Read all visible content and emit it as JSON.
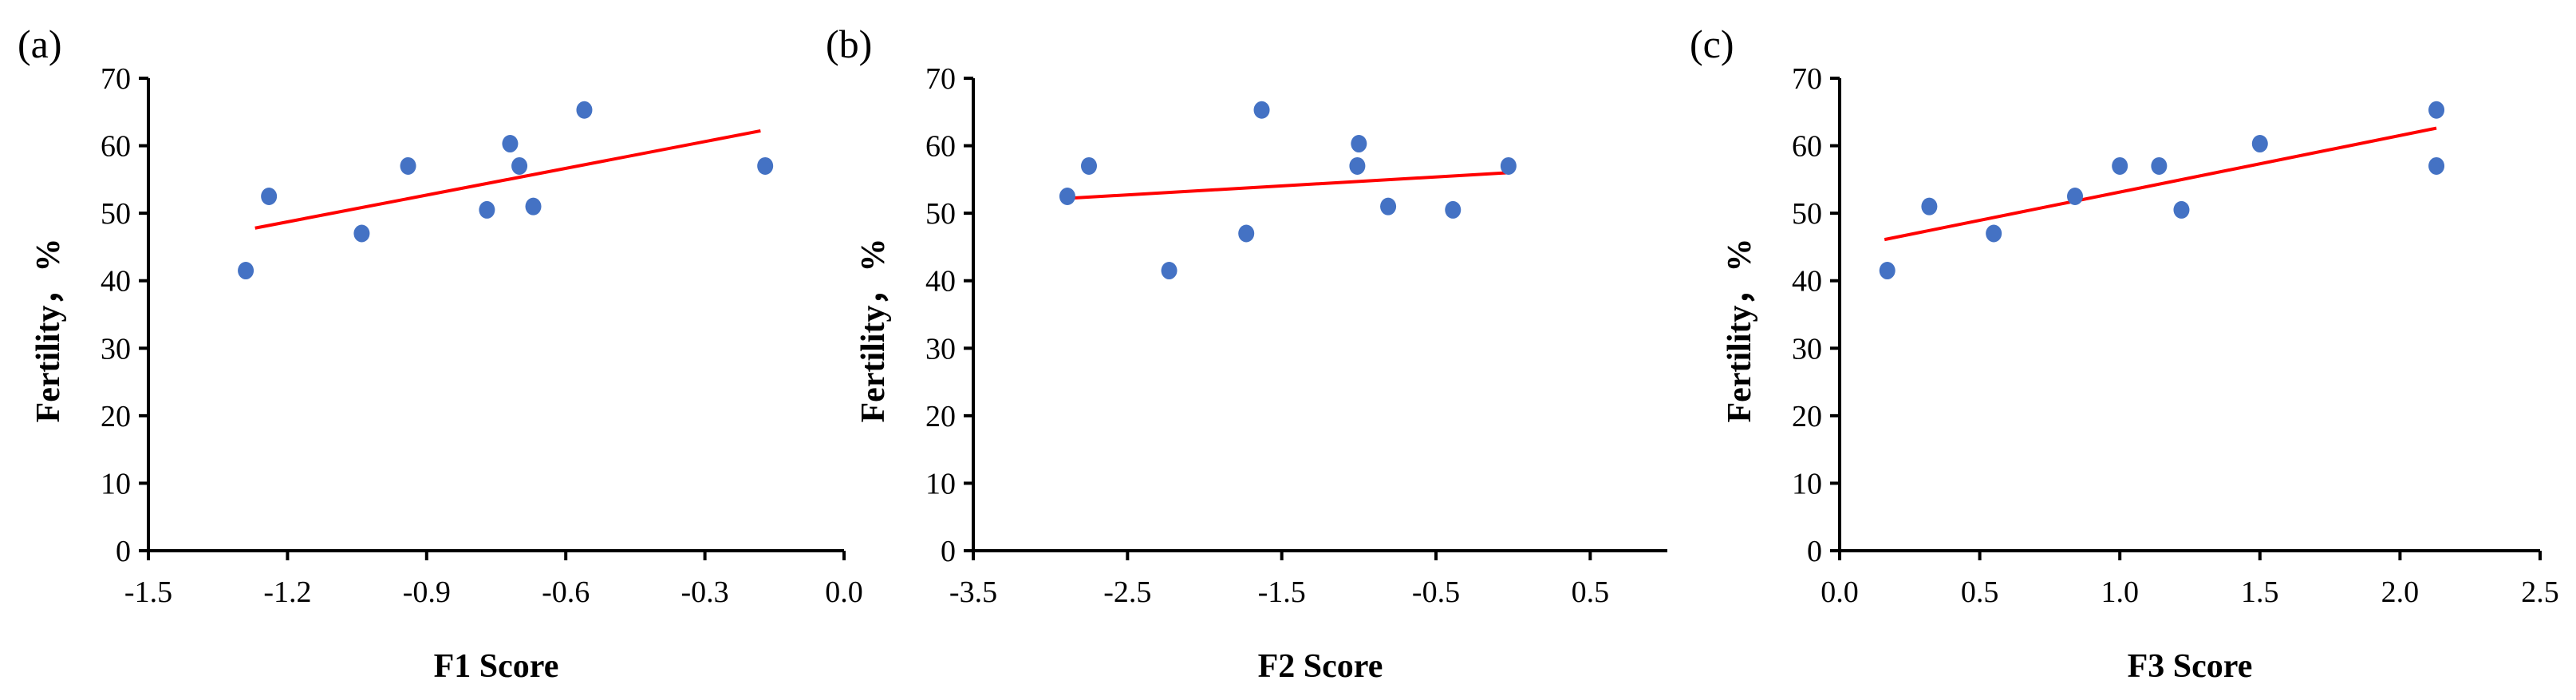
{
  "chart_data": [
    {
      "panel": "(a)",
      "type": "scatter",
      "xlabel": "F1 Score",
      "ylabel": "Fertility，%",
      "xlim": [
        -1.5,
        0.0
      ],
      "ylim": [
        0,
        70
      ],
      "xticks": [
        "-1.5",
        "-1.2",
        "-0.9",
        "-0.6",
        "-0.3",
        "0.0"
      ],
      "yticks": [
        "0",
        "10",
        "20",
        "30",
        "40",
        "50",
        "60",
        "70"
      ],
      "points": [
        {
          "x": -1.29,
          "y": 41.5
        },
        {
          "x": -1.24,
          "y": 52.5
        },
        {
          "x": -1.04,
          "y": 47.0
        },
        {
          "x": -0.94,
          "y": 57.0
        },
        {
          "x": -0.77,
          "y": 50.5
        },
        {
          "x": -0.72,
          "y": 60.3
        },
        {
          "x": -0.7,
          "y": 57.0
        },
        {
          "x": -0.67,
          "y": 51.0
        },
        {
          "x": -0.56,
          "y": 65.3
        },
        {
          "x": -0.17,
          "y": 57.0
        }
      ],
      "trendline": {
        "x": [
          -1.27,
          -0.18
        ],
        "y": [
          47.8,
          62.2
        ]
      },
      "point_color": "#4472C4",
      "line_color": "#FF0000"
    },
    {
      "panel": "(b)",
      "type": "scatter",
      "xlabel": "F2 Score",
      "ylabel": "Fertility，%",
      "xlim": [
        -3.5,
        1.0
      ],
      "ylim": [
        0,
        70
      ],
      "xticks": [
        "-3.5",
        "-2.5",
        "-1.5",
        "-0.5",
        "0.5"
      ],
      "yticks": [
        "0",
        "10",
        "20",
        "30",
        "40",
        "50",
        "60",
        "70"
      ],
      "points": [
        {
          "x": -2.89,
          "y": 52.5
        },
        {
          "x": -2.75,
          "y": 57.0
        },
        {
          "x": -2.23,
          "y": 41.5
        },
        {
          "x": -1.73,
          "y": 47.0
        },
        {
          "x": -1.63,
          "y": 65.3
        },
        {
          "x": -1.01,
          "y": 57.0
        },
        {
          "x": -1.0,
          "y": 60.3
        },
        {
          "x": -0.81,
          "y": 51.0
        },
        {
          "x": -0.39,
          "y": 50.5
        },
        {
          "x": -0.03,
          "y": 57.0
        }
      ],
      "trendline": {
        "x": [
          -2.89,
          -0.03
        ],
        "y": [
          52.2,
          56.0
        ]
      },
      "point_color": "#4472C4",
      "line_color": "#FF0000"
    },
    {
      "panel": "(c)",
      "type": "scatter",
      "xlabel": "F3 Score",
      "ylabel": "Fertility，%",
      "xlim": [
        0.0,
        2.5
      ],
      "ylim": [
        0,
        70
      ],
      "xticks": [
        "0.0",
        "0.5",
        "1.0",
        "1.5",
        "2.0",
        "2.5"
      ],
      "yticks": [
        "0",
        "10",
        "20",
        "30",
        "40",
        "50",
        "60",
        "70"
      ],
      "points": [
        {
          "x": 0.17,
          "y": 41.5
        },
        {
          "x": 0.32,
          "y": 51.0
        },
        {
          "x": 0.55,
          "y": 47.0
        },
        {
          "x": 0.84,
          "y": 52.5
        },
        {
          "x": 1.0,
          "y": 57.0
        },
        {
          "x": 1.14,
          "y": 57.0
        },
        {
          "x": 1.22,
          "y": 50.5
        },
        {
          "x": 1.5,
          "y": 60.3
        },
        {
          "x": 2.13,
          "y": 57.0
        },
        {
          "x": 2.13,
          "y": 65.3
        }
      ],
      "trendline": {
        "x": [
          0.16,
          2.13
        ],
        "y": [
          46.1,
          62.6
        ]
      },
      "point_color": "#4472C4",
      "line_color": "#FF0000"
    }
  ]
}
